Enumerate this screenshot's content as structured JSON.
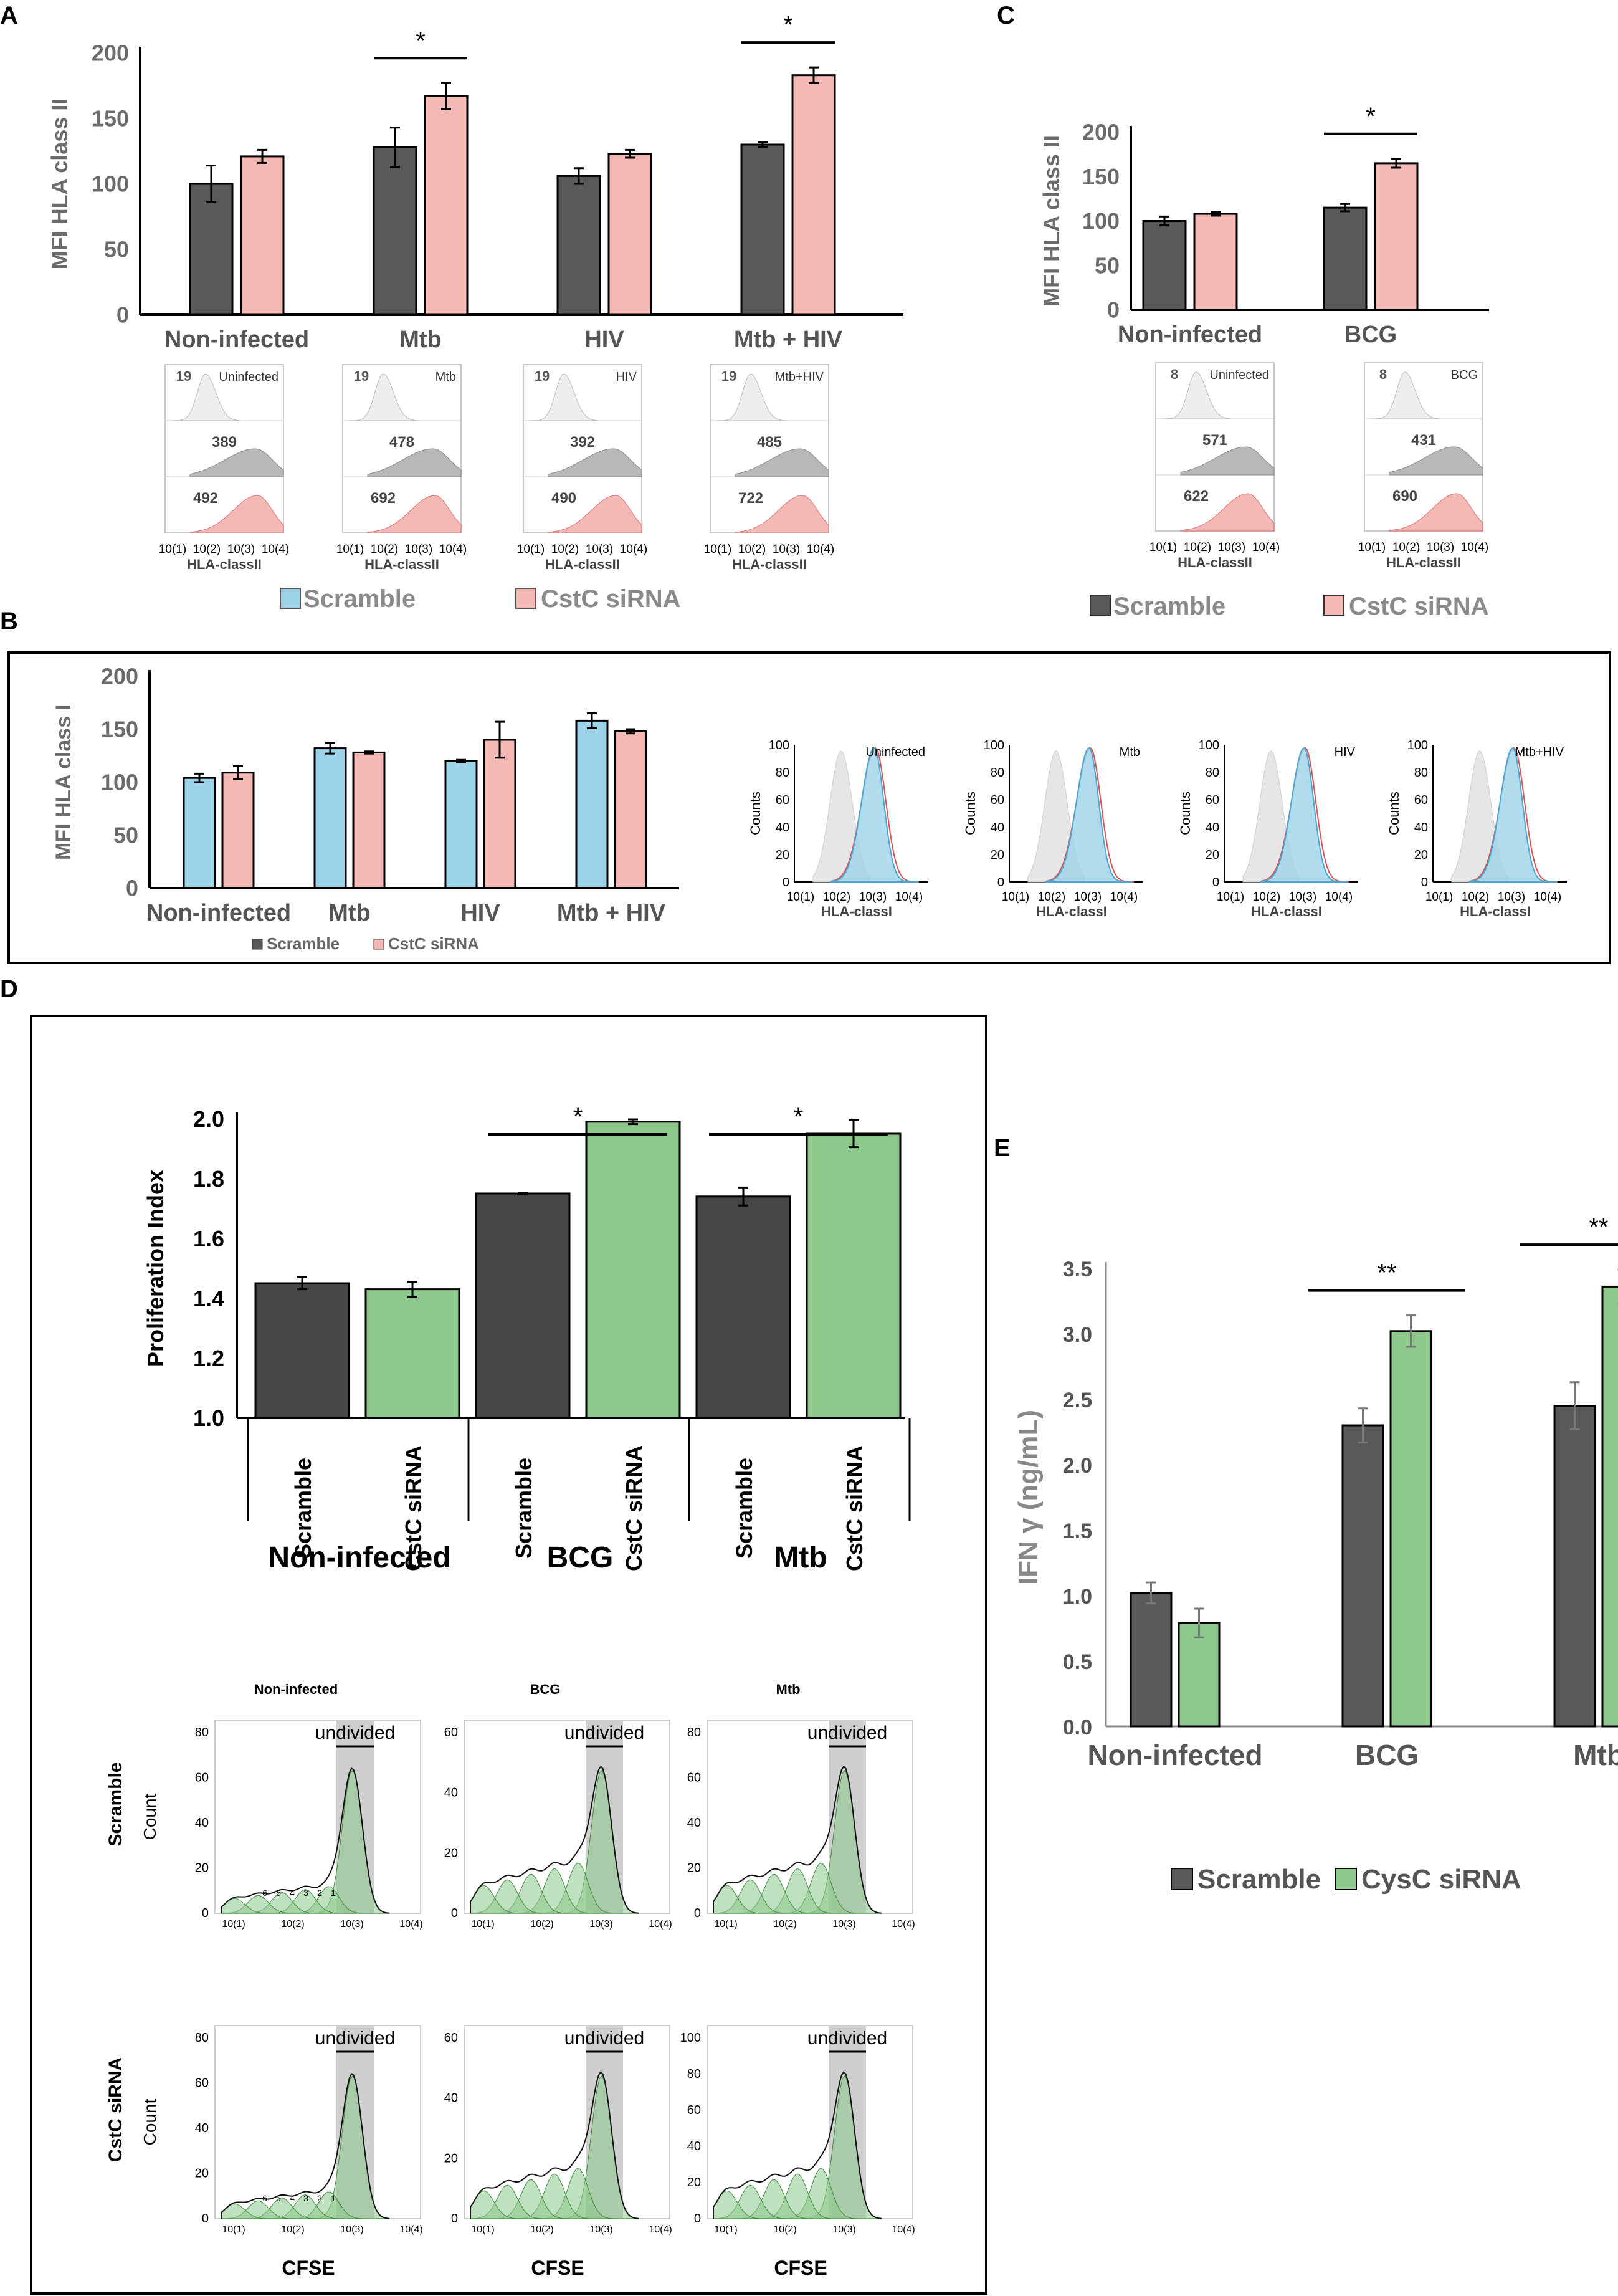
{
  "colors": {
    "scramble_dark": "#595959",
    "scramble_blue": "#9dd3e9",
    "cstc_pink": "#f4b9b5",
    "green": "#8cc98a",
    "grey_hist": "#d9d9d9",
    "mid_grey_hist": "#b8b8b8",
    "gate": "#cfcfcf",
    "text_grey": "#6b6b6b"
  },
  "panel_letters": {
    "A": "A",
    "B": "B",
    "C": "C",
    "D": "D",
    "E": "E"
  },
  "panelA": {
    "ylabel": "MFI HLA class II",
    "ylim": [
      0,
      200
    ],
    "ticks": [
      0,
      50,
      100,
      150,
      200
    ],
    "categories": [
      "Non-infected",
      "Mtb",
      "HIV",
      "Mtb + HIV"
    ],
    "series": [
      {
        "name": "Scramble",
        "values": [
          100,
          128,
          106,
          130
        ],
        "errors": [
          14,
          15,
          6,
          2
        ]
      },
      {
        "name": "CstC siRNA",
        "values": [
          121,
          167,
          123,
          183
        ],
        "errors": [
          5,
          10,
          3,
          6
        ]
      }
    ],
    "significance": [
      {
        "group": 1,
        "label": "*"
      },
      {
        "group": 3,
        "label": "*"
      }
    ],
    "legend": [
      "Scramble",
      "CstC siRNA"
    ],
    "histograms": [
      {
        "cond": "Uninfected",
        "iso": "19",
        "scr": "389",
        "cst": "492"
      },
      {
        "cond": "Mtb",
        "iso": "19",
        "scr": "478",
        "cst": "692"
      },
      {
        "cond": "HIV",
        "iso": "19",
        "scr": "392",
        "cst": "490"
      },
      {
        "cond": "Mtb+HIV",
        "iso": "19",
        "scr": "485",
        "cst": "722"
      }
    ],
    "hist_ticks": [
      "10(1)",
      "10(2)",
      "10(3)",
      "10(4)"
    ],
    "hist_xlabel": "HLA-classII"
  },
  "panelB": {
    "ylabel": "MFI HLA class I",
    "ylim": [
      0,
      200
    ],
    "ticks": [
      0,
      50,
      100,
      150,
      200
    ],
    "categories": [
      "Non-infected",
      "Mtb",
      "HIV",
      "Mtb + HIV"
    ],
    "series": [
      {
        "name": "Scramble",
        "values": [
          104,
          132,
          120,
          158
        ],
        "errors": [
          4,
          5,
          1,
          7
        ]
      },
      {
        "name": "CstC siRNA",
        "values": [
          109,
          128,
          140,
          148
        ],
        "errors": [
          6,
          1,
          17,
          2
        ]
      }
    ],
    "legend": [
      "Scramble",
      "CstC siRNA"
    ],
    "histograms": [
      {
        "cond": "Uninfected"
      },
      {
        "cond": "Mtb"
      },
      {
        "cond": "HIV"
      },
      {
        "cond": "Mtb+HIV"
      }
    ],
    "hist_yticks": [
      "0",
      "20",
      "40",
      "60",
      "80",
      "100"
    ],
    "hist_ylabel": "Counts",
    "hist_ticks": [
      "10(1)",
      "10(2)",
      "10(3)",
      "10(4)"
    ],
    "hist_xlabel": "HLA-classI"
  },
  "panelC": {
    "ylabel": "MFI HLA class II",
    "ylim": [
      0,
      200
    ],
    "ticks": [
      0,
      50,
      100,
      150,
      200
    ],
    "categories": [
      "Non-infected",
      "BCG"
    ],
    "series": [
      {
        "name": "Scramble",
        "values": [
          100,
          115
        ],
        "errors": [
          5,
          4
        ]
      },
      {
        "name": "CstC siRNA",
        "values": [
          108,
          165
        ],
        "errors": [
          2,
          5
        ]
      }
    ],
    "significance": [
      {
        "group": 1,
        "label": "*"
      }
    ],
    "legend": [
      "Scramble",
      "CstC siRNA"
    ],
    "histograms": [
      {
        "cond": "Uninfected",
        "iso": "8",
        "scr": "571",
        "cst": "622"
      },
      {
        "cond": "BCG",
        "iso": "8",
        "scr": "431",
        "cst": "690"
      }
    ],
    "hist_ticks": [
      "10(1)",
      "10(2)",
      "10(3)",
      "10(4)"
    ],
    "hist_xlabel": "HLA-classII"
  },
  "panelD": {
    "ylabel": "Proliferation Index",
    "ylim": [
      1.0,
      2.0
    ],
    "ticks": [
      "1.0",
      "1.2",
      "1.4",
      "1.6",
      "1.8",
      "2.0"
    ],
    "bars": [
      {
        "label": "Scramble",
        "value": 1.45,
        "error": 0.02,
        "kind": "scr"
      },
      {
        "label": "CstC siRNA",
        "value": 1.43,
        "error": 0.025,
        "kind": "cst"
      },
      {
        "label": "Scramble",
        "value": 1.75,
        "error": 0.003,
        "kind": "scr"
      },
      {
        "label": "CstC siRNA",
        "value": 1.99,
        "error": 0.008,
        "kind": "cst"
      },
      {
        "label": "Scramble",
        "value": 1.74,
        "error": 0.03,
        "kind": "scr"
      },
      {
        "label": "CstC siRNA",
        "value": 1.95,
        "error": 0.045,
        "kind": "cst"
      }
    ],
    "groups": [
      "Non-infected",
      "BCG",
      "Mtb"
    ],
    "significance": [
      {
        "group": 1,
        "label": "*"
      },
      {
        "group": 2,
        "label": "*"
      }
    ],
    "flow": {
      "col_titles": [
        "Non-infected",
        "BCG",
        "Mtb"
      ],
      "row_labels": [
        "Scramble",
        "CstC siRNA"
      ],
      "ylabel": "Count",
      "xlabel": "CFSE",
      "gate_label": "undivided",
      "gen_labels": [
        "6",
        "5",
        "4",
        "3",
        "2",
        "1"
      ],
      "x_ticks": [
        "10(1)",
        "10(2)",
        "10(3)",
        "10(4)"
      ],
      "yticks": [
        [
          "0",
          "20",
          "40",
          "60",
          "80"
        ],
        [
          "0",
          "20",
          "40",
          "60"
        ],
        [
          "0",
          "20",
          "40",
          "60",
          "80"
        ],
        [
          "0",
          "20",
          "40",
          "60",
          "80"
        ],
        [
          "0",
          "20",
          "40",
          "60"
        ],
        [
          "0",
          "20",
          "40",
          "60",
          "80",
          "100"
        ]
      ]
    }
  },
  "panelE": {
    "ylabel": "IFN γ (ng/mL)",
    "ylim": [
      0,
      3.5
    ],
    "ticks": [
      "0.0",
      "0.5",
      "1.0",
      "1.5",
      "2.0",
      "2.5",
      "3.0",
      "3.5"
    ],
    "categories": [
      "Non-infected",
      "BCG",
      "Mtb"
    ],
    "series": [
      {
        "name": "Scramble",
        "values": [
          1.02,
          2.3,
          2.45
        ],
        "errors": [
          0.08,
          0.13,
          0.18
        ]
      },
      {
        "name": "CysC siRNA",
        "values": [
          0.79,
          3.02,
          3.36
        ],
        "errors": [
          0.11,
          0.12,
          0.13
        ]
      }
    ],
    "significance": [
      {
        "group": 1,
        "label": "**"
      },
      {
        "group": 2,
        "label": "**"
      }
    ],
    "legend": [
      "Scramble",
      "CysC siRNA"
    ]
  },
  "chart_data": [
    {
      "type": "bar",
      "title": "A",
      "ylabel": "MFI HLA class II",
      "ylim": [
        0,
        200
      ],
      "categories": [
        "Non-infected",
        "Mtb",
        "HIV",
        "Mtb + HIV"
      ],
      "series": [
        {
          "name": "Scramble",
          "values": [
            100,
            128,
            106,
            130
          ]
        },
        {
          "name": "CstC siRNA",
          "values": [
            121,
            167,
            123,
            183
          ]
        }
      ]
    },
    {
      "type": "bar",
      "title": "B",
      "ylabel": "MFI HLA class I",
      "ylim": [
        0,
        200
      ],
      "categories": [
        "Non-infected",
        "Mtb",
        "HIV",
        "Mtb + HIV"
      ],
      "series": [
        {
          "name": "Scramble",
          "values": [
            104,
            132,
            120,
            158
          ]
        },
        {
          "name": "CstC siRNA",
          "values": [
            109,
            128,
            140,
            148
          ]
        }
      ]
    },
    {
      "type": "bar",
      "title": "C",
      "ylabel": "MFI HLA class II",
      "ylim": [
        0,
        200
      ],
      "categories": [
        "Non-infected",
        "BCG"
      ],
      "series": [
        {
          "name": "Scramble",
          "values": [
            100,
            115
          ]
        },
        {
          "name": "CstC siRNA",
          "values": [
            108,
            165
          ]
        }
      ]
    },
    {
      "type": "bar",
      "title": "D",
      "ylabel": "Proliferation Index",
      "ylim": [
        1.0,
        2.0
      ],
      "categories": [
        "Non-infected",
        "BCG",
        "Mtb"
      ],
      "series": [
        {
          "name": "Scramble",
          "values": [
            1.45,
            1.75,
            1.74
          ]
        },
        {
          "name": "CstC siRNA",
          "values": [
            1.43,
            1.99,
            1.95
          ]
        }
      ]
    },
    {
      "type": "bar",
      "title": "E",
      "ylabel": "IFN γ (ng/mL)",
      "ylim": [
        0,
        3.5
      ],
      "categories": [
        "Non-infected",
        "BCG",
        "Mtb"
      ],
      "series": [
        {
          "name": "Scramble",
          "values": [
            1.02,
            2.3,
            2.45
          ]
        },
        {
          "name": "CysC siRNA",
          "values": [
            0.79,
            3.02,
            3.36
          ]
        }
      ]
    }
  ]
}
